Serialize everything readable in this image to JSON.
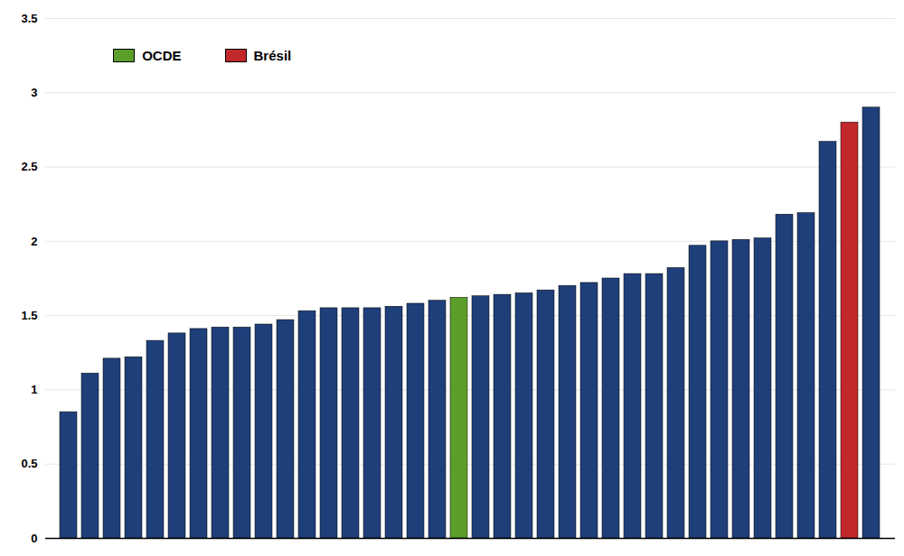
{
  "chart_data": {
    "type": "bar",
    "categories": [
      null,
      null,
      null,
      null,
      null,
      null,
      null,
      null,
      null,
      null,
      null,
      null,
      null,
      null,
      null,
      null,
      null,
      null,
      null,
      null,
      null,
      null,
      null,
      null,
      null,
      null,
      null,
      null,
      null,
      null,
      null,
      null,
      null,
      null,
      null,
      null,
      null,
      null
    ],
    "series": [
      {
        "color": "#1F3F7A",
        "values": [
          0.85,
          1.11,
          1.21,
          1.22,
          1.33,
          1.38,
          1.41,
          1.42,
          1.42,
          1.44,
          1.47,
          1.53,
          1.55,
          1.55,
          1.55,
          1.56,
          1.58,
          1.6,
          null,
          1.63,
          1.64,
          1.65,
          1.67,
          1.7,
          1.72,
          1.75,
          1.78,
          1.78,
          1.82,
          1.97,
          2.0,
          2.01,
          2.02,
          2.18,
          2.19,
          2.67,
          null,
          2.9
        ]
      },
      {
        "name": "OCDE",
        "color": "#5B9E2A",
        "values": [
          null,
          null,
          null,
          null,
          null,
          null,
          null,
          null,
          null,
          null,
          null,
          null,
          null,
          null,
          null,
          null,
          null,
          null,
          1.62,
          null,
          null,
          null,
          null,
          null,
          null,
          null,
          null,
          null,
          null,
          null,
          null,
          null,
          null,
          null,
          null,
          null,
          null,
          null
        ]
      },
      {
        "name": "Brésil",
        "color": "#C0282A",
        "values": [
          null,
          null,
          null,
          null,
          null,
          null,
          null,
          null,
          null,
          null,
          null,
          null,
          null,
          null,
          null,
          null,
          null,
          null,
          null,
          null,
          null,
          null,
          null,
          null,
          null,
          null,
          null,
          null,
          null,
          null,
          null,
          null,
          null,
          null,
          null,
          null,
          2.8,
          null
        ]
      }
    ],
    "stacked": true,
    "ylim": [
      0,
      3.5
    ],
    "yticks": [
      0,
      0.5,
      1,
      1.5,
      2,
      2.5,
      3,
      3.5
    ],
    "grid": true,
    "legend": "upper left",
    "tick_labels": "y"
  }
}
